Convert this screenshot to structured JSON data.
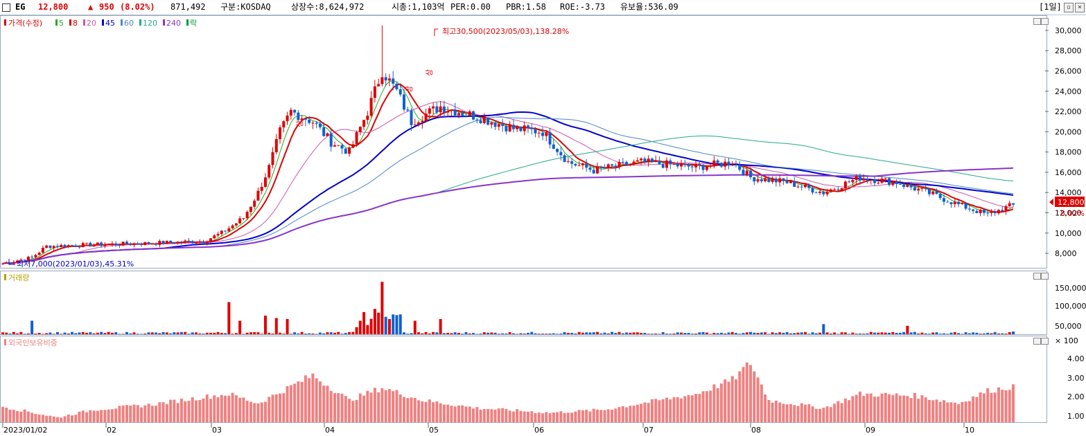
{
  "header": {
    "symbol": "EG",
    "price": "12,800",
    "change_arrow": "▲",
    "change": "950",
    "change_pct": "(8.02%)",
    "volume": "871,492",
    "market": "구분:KOSDAQ",
    "shares": "상장수:8,624,972",
    "mcap": "시총:1,103억",
    "per": "PER:0.00",
    "pbr": "PBR:1.58",
    "roe": "ROE:-3.73",
    "float": "유보율:536.09",
    "period": "[1일]",
    "colors": {
      "up": "#e00000",
      "down": "#0000e0",
      "text": "#000000"
    }
  },
  "legend": {
    "price_label": "가격(수정)",
    "ma": [
      {
        "label": "5",
        "color": "#22aa22"
      },
      {
        "label": "8",
        "color": "#e00000"
      },
      {
        "label": "20",
        "color": "#cc55aa"
      },
      {
        "label": "45",
        "color": "#0000cc"
      },
      {
        "label": "60",
        "color": "#4a86c8"
      },
      {
        "label": "120",
        "color": "#22aa88"
      },
      {
        "label": "240",
        "color": "#8833cc"
      },
      {
        "label": "락",
        "color": "#009933"
      }
    ]
  },
  "annotations": {
    "high": "최고30,500(2023/05/03),138.28%",
    "low": "최저7,000(2023/01/03),45.31%",
    "limit_up": "상",
    "last_price": "12,800",
    "last_pct": "8.02%"
  },
  "volume_panel": {
    "label": "거래량",
    "ticks": [
      "150,000",
      "100,000",
      "50,000",
      "× 100"
    ]
  },
  "foreign_panel": {
    "label": "외국인보유비중",
    "ticks": [
      "4.00",
      "3.00",
      "2.00",
      "1.00"
    ]
  },
  "chart_data": {
    "type": "candlestick",
    "x_labels": [
      "2023/01/02",
      "02",
      "03",
      "04",
      "05",
      "06",
      "07",
      "08",
      "09",
      "10"
    ],
    "y_ticks": [
      8000,
      10000,
      12000,
      14000,
      16000,
      18000,
      20000,
      22000,
      24000,
      26000,
      28000,
      30000
    ],
    "ylim": [
      6500,
      31500
    ],
    "monthly_close": [
      {
        "month": "01",
        "close": 8700
      },
      {
        "month": "02",
        "close": 8800
      },
      {
        "month": "03",
        "close": 10400
      },
      {
        "month": "04",
        "close": 18500
      },
      {
        "month": "05",
        "close": 22500
      },
      {
        "month": "06",
        "close": 17000
      },
      {
        "month": "07",
        "close": 16200
      },
      {
        "month": "08",
        "close": 14600
      },
      {
        "month": "09",
        "close": 13200
      },
      {
        "month": "10",
        "close": 12800
      }
    ],
    "high": {
      "value": 30500,
      "date": "2023/05/03"
    },
    "low": {
      "value": 7000,
      "date": "2023/01/03"
    },
    "last": 12800,
    "volume_max": 150000,
    "volume_peak_dates": [
      "03 mid",
      "04 early",
      "05 early",
      "06 early",
      "08 early"
    ],
    "foreign_ratio_range": [
      0.8,
      4.5
    ]
  }
}
